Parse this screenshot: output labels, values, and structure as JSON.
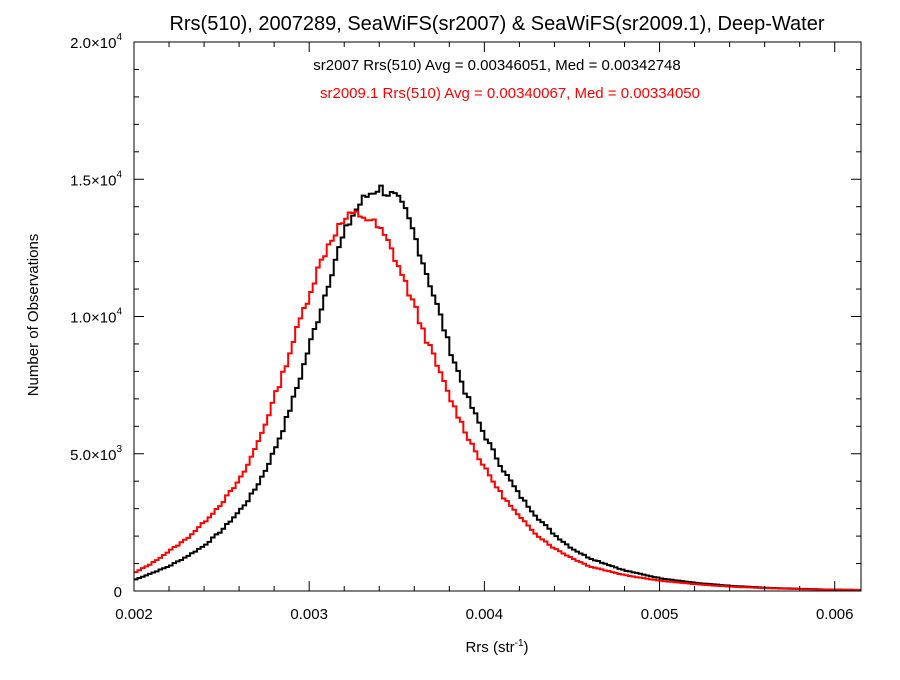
{
  "chart_data": {
    "type": "line",
    "title": "Rrs(510), 2007289, SeaWiFS(sr2007) & SeaWiFS(sr2009.1), Deep-Water",
    "xlabel": "Rrs (str",
    "xlabel_sup": "-1",
    "xlabel_end": ")",
    "ylabel": "Number of Observations",
    "xlim": [
      0.002,
      0.00615
    ],
    "ylim": [
      0,
      20000
    ],
    "x_ticks": [
      {
        "value": 0.002,
        "label": "0.002"
      },
      {
        "value": 0.003,
        "label": "0.003"
      },
      {
        "value": 0.004,
        "label": "0.004"
      },
      {
        "value": 0.005,
        "label": "0.005"
      },
      {
        "value": 0.006,
        "label": "0.006"
      }
    ],
    "y_ticks": [
      {
        "value": 0,
        "mantissa": "0",
        "exponent": ""
      },
      {
        "value": 5000,
        "mantissa": "5.0×10",
        "exponent": "3"
      },
      {
        "value": 10000,
        "mantissa": "1.0×10",
        "exponent": "4"
      },
      {
        "value": 15000,
        "mantissa": "1.5×10",
        "exponent": "4"
      },
      {
        "value": 20000,
        "mantissa": "2.0×10",
        "exponent": "4"
      }
    ],
    "grid": false,
    "annotations": [
      {
        "text": "sr2007 Rrs(510) Avg = 0.00346051, Med = 0.00342748",
        "color": "#000000"
      },
      {
        "text": "sr2009.1 Rrs(510) Avg = 0.00340067, Med = 0.00334050",
        "color": "#ff0000"
      }
    ],
    "bin_width": 2e-05,
    "series": [
      {
        "color": "#000000",
        "x": [
          0.002,
          0.0021,
          0.0022,
          0.0023,
          0.0024,
          0.0025,
          0.0026,
          0.00265,
          0.0027,
          0.00275,
          0.0028,
          0.00285,
          0.0029,
          0.00295,
          0.003,
          0.00305,
          0.0031,
          0.00315,
          0.0032,
          0.00325,
          0.0033,
          0.00335,
          0.0034,
          0.00345,
          0.0035,
          0.00355,
          0.0036,
          0.00365,
          0.0037,
          0.00375,
          0.0038,
          0.0039,
          0.004,
          0.0041,
          0.0042,
          0.0043,
          0.0044,
          0.0045,
          0.0046,
          0.0048,
          0.005,
          0.0052,
          0.0054,
          0.0056,
          0.0058,
          0.006,
          0.00615
        ],
        "y": [
          400,
          650,
          900,
          1250,
          1650,
          2200,
          2900,
          3300,
          3800,
          4400,
          5100,
          5900,
          6800,
          7800,
          8900,
          9900,
          11000,
          12100,
          13000,
          13700,
          14200,
          14500,
          14700,
          14500,
          14300,
          13800,
          13000,
          12000,
          11000,
          10000,
          8900,
          7100,
          5700,
          4500,
          3500,
          2700,
          2050,
          1550,
          1200,
          750,
          470,
          300,
          190,
          120,
          80,
          50,
          40
        ]
      },
      {
        "color": "#ff0000",
        "x": [
          0.002,
          0.0021,
          0.0022,
          0.0023,
          0.0024,
          0.0025,
          0.0026,
          0.00265,
          0.0027,
          0.00275,
          0.0028,
          0.00285,
          0.0029,
          0.00295,
          0.003,
          0.00305,
          0.0031,
          0.00315,
          0.0032,
          0.00325,
          0.0033,
          0.00335,
          0.0034,
          0.00345,
          0.0035,
          0.00355,
          0.0036,
          0.00365,
          0.0037,
          0.0038,
          0.0039,
          0.004,
          0.0041,
          0.0042,
          0.0043,
          0.0044,
          0.0045,
          0.0046,
          0.0048,
          0.005,
          0.0052,
          0.0054,
          0.0056,
          0.0058,
          0.006,
          0.00615
        ],
        "y": [
          650,
          1000,
          1450,
          1900,
          2500,
          3200,
          4000,
          4600,
          5300,
          6100,
          7000,
          7900,
          8900,
          9900,
          10800,
          11700,
          12500,
          13100,
          13500,
          13700,
          13700,
          13500,
          13200,
          12700,
          12000,
          11200,
          10400,
          9500,
          8700,
          7100,
          5700,
          4500,
          3500,
          2700,
          2050,
          1550,
          1200,
          900,
          580,
          380,
          250,
          160,
          105,
          70,
          45,
          35
        ]
      }
    ]
  }
}
